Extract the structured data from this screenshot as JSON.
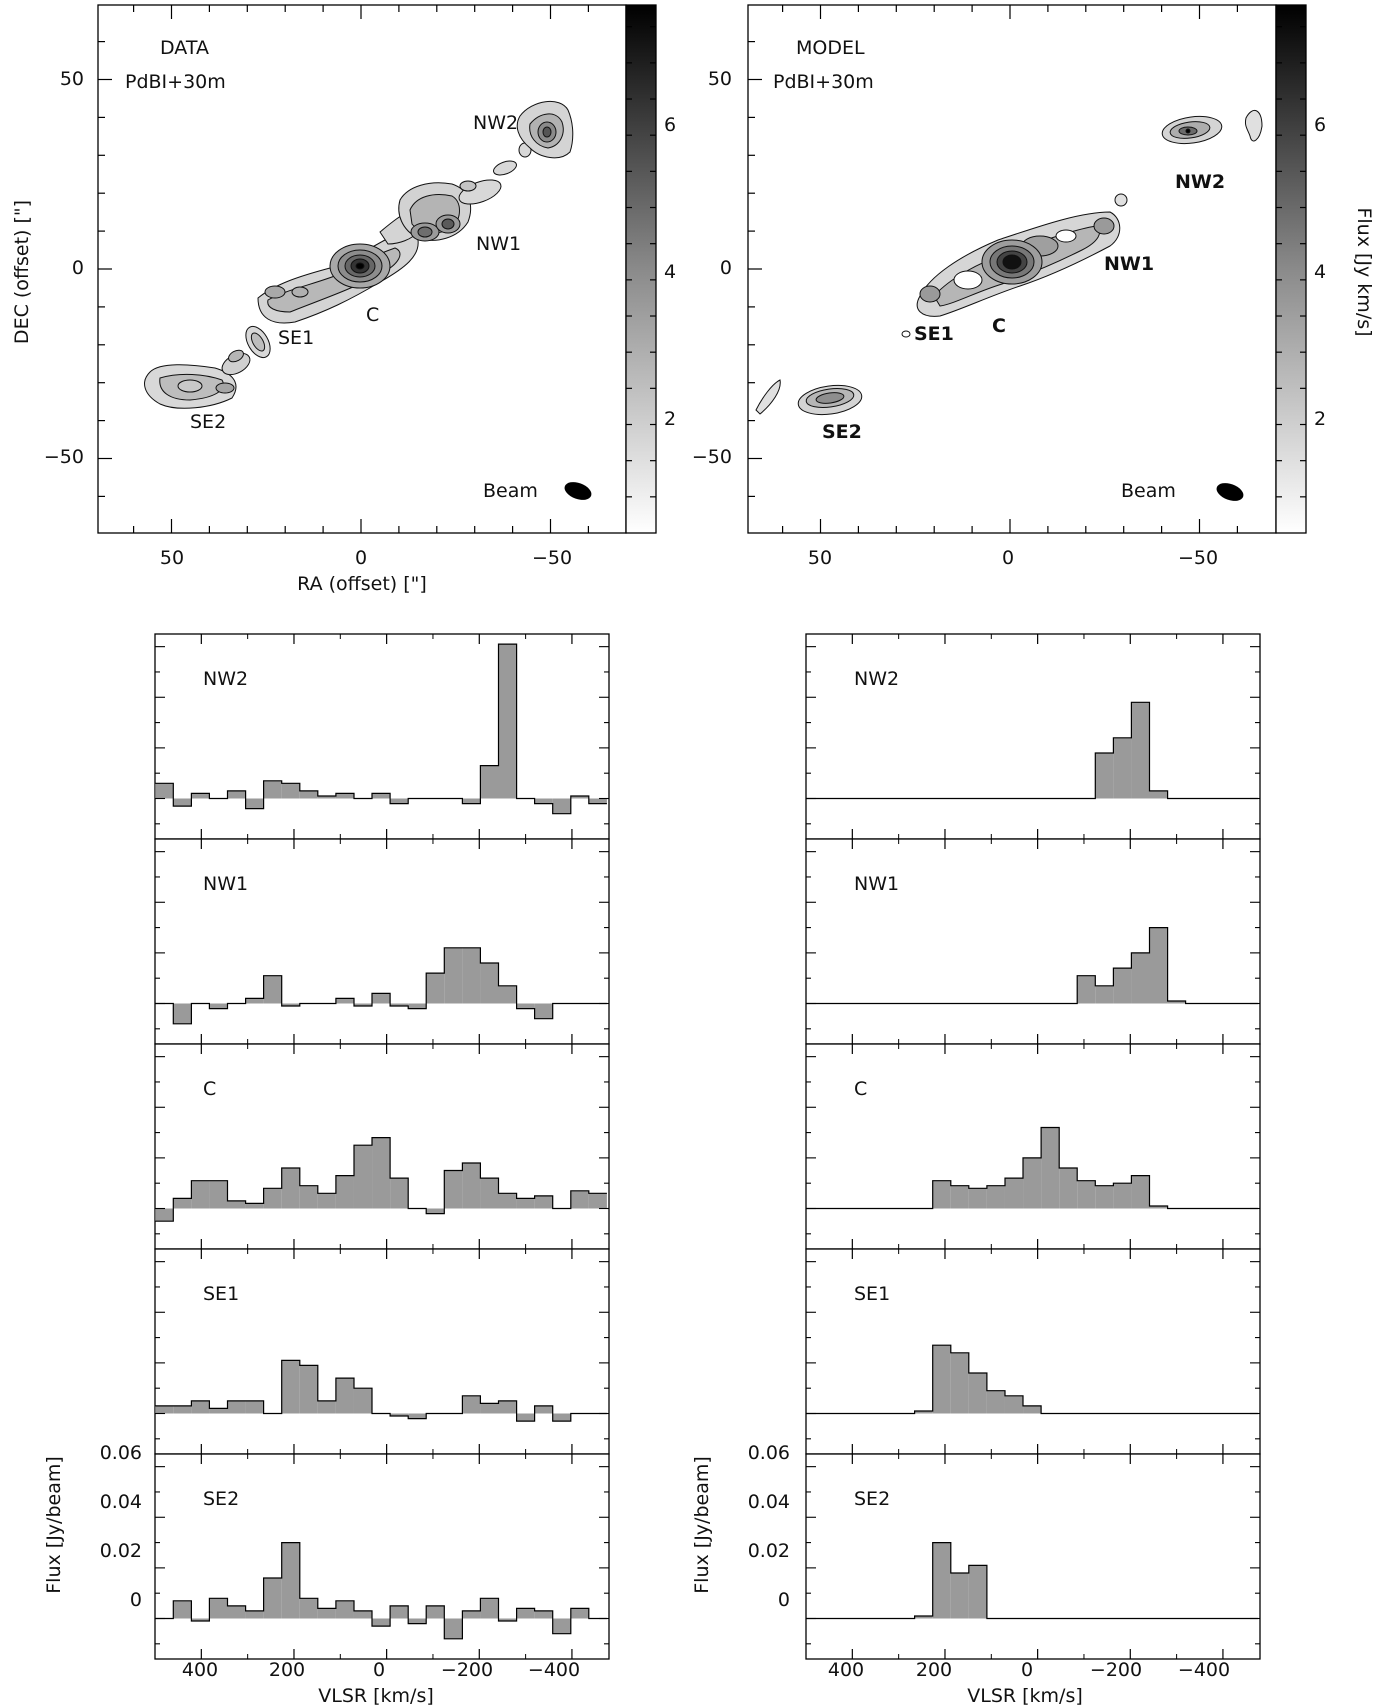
{
  "colors": {
    "fill": "#9a9a9a",
    "line": "#000000",
    "dark": "#111111"
  },
  "maps": {
    "xlabel": "RA (offset) [\"]",
    "ylabel": "DEC (offset) [\"]",
    "colorbar_label": "Flux [Jy km/s]",
    "xticks": [
      "50",
      "0",
      "−50"
    ],
    "yticks": [
      "50",
      "0",
      "−50"
    ],
    "cbar_ticks": [
      "6",
      "4",
      "2"
    ],
    "beam_label": "Beam",
    "panels": [
      {
        "title": "DATA",
        "subtitle": "PdBI+30m",
        "labels": [
          "NW2",
          "NW1",
          "C",
          "SE1",
          "SE2"
        ]
      },
      {
        "title": "MODEL",
        "subtitle": "PdBI+30m",
        "labels": [
          "NW2",
          "NW1",
          "C",
          "SE1",
          "SE2"
        ]
      }
    ]
  },
  "spectra": {
    "xlabel": "VLSR [km/s]",
    "ylabel": "Flux [Jy/beam]",
    "xticks": [
      "400",
      "200",
      "0",
      "−200",
      "−400"
    ],
    "yticks": [
      "0.06",
      "0.04",
      "0.02",
      "0"
    ]
  },
  "chart_data": [
    {
      "type": "bar",
      "title": "DATA / NW2",
      "xlabel": "VLSR [km/s]",
      "ylabel": "Flux [Jy/beam]",
      "xlim": [
        500,
        -480
      ],
      "ylim": [
        -0.016,
        0.065
      ],
      "bin_width_kmps": 39,
      "x": [
        480,
        441,
        402,
        363,
        324,
        285,
        246,
        207,
        168,
        129,
        90,
        51,
        12,
        -27,
        -66,
        -105,
        -144,
        -183,
        -222,
        -261,
        -300,
        -339,
        -378,
        -417,
        -456
      ],
      "values": [
        0.006,
        -0.003,
        0.002,
        0.0,
        0.003,
        -0.004,
        0.007,
        0.006,
        0.003,
        0.001,
        0.002,
        0.0,
        0.002,
        -0.002,
        0.0,
        0.0,
        0.0,
        -0.002,
        0.013,
        0.061,
        0.0,
        -0.002,
        -0.006,
        0.001,
        -0.002
      ]
    },
    {
      "type": "bar",
      "title": "DATA / NW1",
      "xlabel": "VLSR [km/s]",
      "ylabel": "Flux [Jy/beam]",
      "xlim": [
        500,
        -480
      ],
      "ylim": [
        -0.016,
        0.065
      ],
      "x": [
        480,
        441,
        402,
        363,
        324,
        285,
        246,
        207,
        168,
        129,
        90,
        51,
        12,
        -27,
        -66,
        -105,
        -144,
        -183,
        -222,
        -261,
        -300,
        -339,
        -378,
        -417,
        -456
      ],
      "values": [
        0.0,
        -0.008,
        0.0,
        -0.002,
        0.0,
        0.002,
        0.011,
        -0.001,
        0.0,
        0.0,
        0.002,
        -0.001,
        0.004,
        -0.001,
        -0.002,
        0.012,
        0.022,
        0.022,
        0.016,
        0.007,
        -0.002,
        -0.006,
        0.0,
        0.0,
        0.0
      ]
    },
    {
      "type": "bar",
      "title": "DATA / C",
      "xlabel": "VLSR [km/s]",
      "ylabel": "Flux [Jy/beam]",
      "xlim": [
        500,
        -480
      ],
      "ylim": [
        -0.016,
        0.065
      ],
      "x": [
        480,
        441,
        402,
        363,
        324,
        285,
        246,
        207,
        168,
        129,
        90,
        51,
        12,
        -27,
        -66,
        -105,
        -144,
        -183,
        -222,
        -261,
        -300,
        -339,
        -378,
        -417,
        -456
      ],
      "values": [
        -0.005,
        0.004,
        0.011,
        0.011,
        0.003,
        0.002,
        0.008,
        0.016,
        0.009,
        0.006,
        0.013,
        0.025,
        0.028,
        0.012,
        0.0,
        -0.002,
        0.015,
        0.018,
        0.012,
        0.006,
        0.004,
        0.005,
        0.0,
        0.007,
        0.006
      ]
    },
    {
      "type": "bar",
      "title": "DATA / SE1",
      "xlabel": "VLSR [km/s]",
      "ylabel": "Flux [Jy/beam]",
      "xlim": [
        500,
        -480
      ],
      "ylim": [
        -0.016,
        0.065
      ],
      "x": [
        480,
        441,
        402,
        363,
        324,
        285,
        246,
        207,
        168,
        129,
        90,
        51,
        12,
        -27,
        -66,
        -105,
        -144,
        -183,
        -222,
        -261,
        -300,
        -339,
        -378,
        -417,
        -456
      ],
      "values": [
        0.003,
        0.003,
        0.005,
        0.002,
        0.005,
        0.005,
        0.0,
        0.021,
        0.019,
        0.005,
        0.014,
        0.01,
        0.0,
        -0.001,
        -0.002,
        0.0,
        0.0,
        0.007,
        0.004,
        0.005,
        -0.003,
        0.003,
        -0.003,
        0.0,
        0.0
      ]
    },
    {
      "type": "bar",
      "title": "DATA / SE2",
      "xlabel": "VLSR [km/s]",
      "ylabel": "Flux [Jy/beam]",
      "xlim": [
        500,
        -480
      ],
      "ylim": [
        -0.016,
        0.065
      ],
      "x": [
        480,
        441,
        402,
        363,
        324,
        285,
        246,
        207,
        168,
        129,
        90,
        51,
        12,
        -27,
        -66,
        -105,
        -144,
        -183,
        -222,
        -261,
        -300,
        -339,
        -378,
        -417,
        -456
      ],
      "values": [
        0.0,
        0.007,
        -0.001,
        0.008,
        0.005,
        0.003,
        0.016,
        0.03,
        0.008,
        0.004,
        0.007,
        0.003,
        -0.003,
        0.005,
        -0.002,
        0.005,
        -0.008,
        0.003,
        0.008,
        -0.001,
        0.004,
        0.003,
        -0.006,
        0.004,
        0.0
      ]
    },
    {
      "type": "bar",
      "title": "MODEL / NW2",
      "xlabel": "VLSR [km/s]",
      "ylabel": "Flux [Jy/beam]",
      "xlim": [
        500,
        -480
      ],
      "ylim": [
        -0.016,
        0.065
      ],
      "x": [
        480,
        441,
        402,
        363,
        324,
        285,
        246,
        207,
        168,
        129,
        90,
        51,
        12,
        -27,
        -66,
        -105,
        -144,
        -183,
        -222,
        -261,
        -300,
        -339,
        -378,
        -417,
        -456
      ],
      "values": [
        0.0,
        0.0,
        0.0,
        0.0,
        0.0,
        0.0,
        0.0,
        0.0,
        0.0,
        0.0,
        0.0,
        0.0,
        0.0,
        0.0,
        0.0,
        0.0,
        0.018,
        0.024,
        0.038,
        0.003,
        0.0,
        0.0,
        0.0,
        0.0,
        0.0
      ]
    },
    {
      "type": "bar",
      "title": "MODEL / NW1",
      "xlabel": "VLSR [km/s]",
      "ylabel": "Flux [Jy/beam]",
      "xlim": [
        500,
        -480
      ],
      "ylim": [
        -0.016,
        0.065
      ],
      "x": [
        480,
        441,
        402,
        363,
        324,
        285,
        246,
        207,
        168,
        129,
        90,
        51,
        12,
        -27,
        -66,
        -105,
        -144,
        -183,
        -222,
        -261,
        -300,
        -339,
        -378,
        -417,
        -456
      ],
      "values": [
        0.0,
        0.0,
        0.0,
        0.0,
        0.0,
        0.0,
        0.0,
        0.0,
        0.0,
        0.0,
        0.0,
        0.0,
        0.0,
        0.0,
        0.0,
        0.011,
        0.007,
        0.014,
        0.02,
        0.03,
        0.001,
        0.0,
        0.0,
        0.0,
        0.0
      ]
    },
    {
      "type": "bar",
      "title": "MODEL / C",
      "xlabel": "VLSR [km/s]",
      "ylabel": "Flux [Jy/beam]",
      "xlim": [
        500,
        -480
      ],
      "ylim": [
        -0.016,
        0.065
      ],
      "x": [
        480,
        441,
        402,
        363,
        324,
        285,
        246,
        207,
        168,
        129,
        90,
        51,
        12,
        -27,
        -66,
        -105,
        -144,
        -183,
        -222,
        -261,
        -300,
        -339,
        -378,
        -417,
        -456
      ],
      "values": [
        0.0,
        0.0,
        0.0,
        0.0,
        0.0,
        0.0,
        0.0,
        0.011,
        0.009,
        0.008,
        0.009,
        0.012,
        0.02,
        0.032,
        0.016,
        0.011,
        0.009,
        0.01,
        0.013,
        0.001,
        0.0,
        0.0,
        0.0,
        0.0,
        0.0
      ]
    },
    {
      "type": "bar",
      "title": "MODEL / SE1",
      "xlabel": "VLSR [km/s]",
      "ylabel": "Flux [Jy/beam]",
      "xlim": [
        500,
        -480
      ],
      "ylim": [
        -0.016,
        0.065
      ],
      "x": [
        480,
        441,
        402,
        363,
        324,
        285,
        246,
        207,
        168,
        129,
        90,
        51,
        12,
        -27,
        -66,
        -105,
        -144,
        -183,
        -222,
        -261,
        -300,
        -339,
        -378,
        -417,
        -456
      ],
      "values": [
        0.0,
        0.0,
        0.0,
        0.0,
        0.0,
        0.0,
        0.001,
        0.027,
        0.024,
        0.016,
        0.009,
        0.007,
        0.003,
        0.0,
        0.0,
        0.0,
        0.0,
        0.0,
        0.0,
        0.0,
        0.0,
        0.0,
        0.0,
        0.0,
        0.0
      ]
    },
    {
      "type": "bar",
      "title": "MODEL / SE2",
      "xlabel": "VLSR [km/s]",
      "ylabel": "Flux [Jy/beam]",
      "xlim": [
        500,
        -480
      ],
      "ylim": [
        -0.016,
        0.065
      ],
      "x": [
        480,
        441,
        402,
        363,
        324,
        285,
        246,
        207,
        168,
        129,
        90,
        51,
        12,
        -27,
        -66,
        -105,
        -144,
        -183,
        -222,
        -261,
        -300,
        -339,
        -378,
        -417,
        -456
      ],
      "values": [
        0.0,
        0.0,
        0.0,
        0.0,
        0.0,
        0.0,
        0.001,
        0.03,
        0.018,
        0.021,
        0.0,
        0.0,
        0.0,
        0.0,
        0.0,
        0.0,
        0.0,
        0.0,
        0.0,
        0.0,
        0.0,
        0.0,
        0.0,
        0.0,
        0.0
      ]
    }
  ]
}
